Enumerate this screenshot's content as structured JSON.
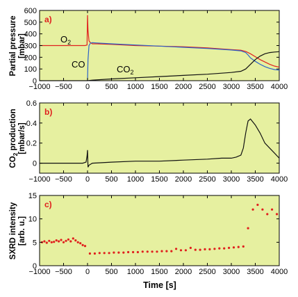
{
  "colors": {
    "background": "#e6f0a0",
    "frame": "#000000",
    "o2": "#e0201e",
    "co": "#2b62c8",
    "co2": "#111111",
    "sxrd": "#e0201e",
    "panel_label": "#e0201e"
  },
  "chart_data": [
    {
      "type": "line",
      "panel_label": "a)",
      "ylabel_line1": "Partial pressure",
      "ylabel_line2": "[mbar]",
      "xlim": [
        -1000,
        4000
      ],
      "ylim": [
        0,
        600
      ],
      "xticks": [
        -1000,
        -500,
        0,
        500,
        1000,
        1500,
        2000,
        2500,
        3000,
        3500,
        4000
      ],
      "yticks": [
        0,
        100,
        200,
        300,
        400,
        500,
        600
      ],
      "xtick_labels": [
        "−1000",
        "−500",
        "0",
        "500",
        "1000",
        "1500",
        "2000",
        "2500",
        "3000",
        "3500",
        "4000"
      ],
      "ytick_labels": [
        "0",
        "100",
        "200",
        "300",
        "400",
        "500",
        "600"
      ],
      "annotations": {
        "o2": "O",
        "o2_sub": "2",
        "co": "CO",
        "co2": "CO",
        "co2_sub": "2"
      },
      "series": [
        {
          "key": "o2",
          "x": [
            -1000,
            -500,
            -50,
            -10,
            0,
            10,
            30,
            60,
            100,
            200,
            500,
            1000,
            1500,
            2000,
            2500,
            3000,
            3200,
            3300,
            3400,
            3500,
            3600,
            3700,
            3800,
            3900,
            4000
          ],
          "y": [
            300,
            300,
            300,
            305,
            560,
            430,
            340,
            325,
            315,
            315,
            310,
            300,
            295,
            290,
            280,
            265,
            260,
            250,
            230,
            205,
            180,
            160,
            140,
            125,
            115
          ]
        },
        {
          "key": "co",
          "x": [
            0,
            10,
            30,
            60,
            100,
            200,
            500,
            1000,
            1500,
            2000,
            2500,
            3000,
            3200,
            3300,
            3350,
            3400,
            3500,
            3600,
            3700,
            3800,
            3900,
            4000
          ],
          "y": [
            5,
            180,
            300,
            320,
            325,
            322,
            315,
            305,
            295,
            285,
            275,
            262,
            255,
            240,
            220,
            195,
            165,
            140,
            120,
            105,
            95,
            90
          ]
        },
        {
          "key": "co2",
          "x": [
            -1000,
            0,
            100,
            500,
            1000,
            1500,
            2000,
            2500,
            3000,
            3200,
            3300,
            3400,
            3500,
            3600,
            3700,
            3800,
            3900,
            4000
          ],
          "y": [
            0,
            0,
            5,
            15,
            25,
            35,
            45,
            55,
            70,
            80,
            100,
            140,
            180,
            210,
            230,
            240,
            245,
            248
          ]
        }
      ]
    },
    {
      "type": "line",
      "panel_label": "b)",
      "ylabel_line1": "CO",
      "ylabel_sub": "2",
      "ylabel_line1_rest": " production",
      "ylabel_line2": "[mbar/s]",
      "xlim": [
        -1000,
        4000
      ],
      "ylim": [
        -0.1,
        0.6
      ],
      "xticks": [
        -1000,
        -500,
        0,
        500,
        1000,
        1500,
        2000,
        2500,
        3000,
        3500,
        4000
      ],
      "yticks": [
        0,
        0.2,
        0.4,
        0.6
      ],
      "xtick_labels": [
        "−1000",
        "−500",
        "0",
        "500",
        "1000",
        "1500",
        "2000",
        "2500",
        "3000",
        "3500",
        "4000"
      ],
      "ytick_labels": [
        "0",
        "0.2",
        "0.4",
        "0.6"
      ],
      "series": [
        {
          "key": "co2_rate",
          "x": [
            -1000,
            -500,
            -100,
            -30,
            -10,
            0,
            10,
            30,
            100,
            500,
            1000,
            1500,
            2000,
            2500,
            2800,
            3000,
            3100,
            3200,
            3250,
            3300,
            3350,
            3400,
            3500,
            3600,
            3700,
            3800,
            3900,
            4000
          ],
          "y": [
            0.0,
            0.0,
            0.0,
            0.01,
            0.07,
            0.13,
            -0.04,
            -0.02,
            0.0,
            0.01,
            0.02,
            0.02,
            0.03,
            0.04,
            0.05,
            0.05,
            0.06,
            0.08,
            0.15,
            0.3,
            0.42,
            0.44,
            0.38,
            0.3,
            0.2,
            0.15,
            0.1,
            0.05
          ]
        }
      ]
    },
    {
      "type": "scatter",
      "panel_label": "c)",
      "ylabel_line1": "SXRD intensity",
      "ylabel_line2": "[arb. u.]",
      "xlabel": "Time [s]",
      "xlim": [
        -1000,
        4000
      ],
      "ylim": [
        0,
        15
      ],
      "xticks": [
        -1000,
        -500,
        0,
        500,
        1000,
        1500,
        2000,
        2500,
        3000,
        3500,
        4000
      ],
      "yticks": [
        0,
        5,
        10,
        15
      ],
      "xtick_labels": [
        "−1000",
        "−500",
        "0",
        "500",
        "1000",
        "1500",
        "2000",
        "2500",
        "3000",
        "3500",
        "4000"
      ],
      "ytick_labels": [
        "0",
        "5",
        "10",
        "15"
      ],
      "series": [
        {
          "key": "sxrd",
          "x": [
            -950,
            -900,
            -850,
            -800,
            -750,
            -700,
            -650,
            -600,
            -550,
            -500,
            -450,
            -400,
            -350,
            -300,
            -250,
            -200,
            -150,
            -100,
            -50,
            50,
            150,
            250,
            350,
            450,
            550,
            650,
            750,
            850,
            950,
            1050,
            1150,
            1250,
            1350,
            1450,
            1550,
            1650,
            1750,
            1850,
            1950,
            2050,
            2150,
            2250,
            2350,
            2450,
            2550,
            2650,
            2750,
            2850,
            2950,
            3050,
            3150,
            3250,
            3350,
            3450,
            3550,
            3650,
            3750,
            3850,
            3950
          ],
          "y": [
            5.0,
            5.2,
            4.9,
            5.3,
            5.0,
            5.1,
            5.4,
            5.2,
            5.5,
            5.0,
            5.3,
            5.6,
            5.2,
            5.8,
            5.4,
            5.0,
            4.8,
            4.4,
            4.2,
            2.6,
            2.6,
            2.7,
            2.7,
            2.7,
            2.8,
            2.8,
            2.8,
            2.9,
            2.9,
            2.9,
            3.0,
            3.0,
            3.0,
            3.0,
            3.1,
            3.1,
            3.1,
            3.6,
            3.3,
            3.3,
            3.8,
            3.4,
            3.4,
            3.5,
            3.5,
            3.6,
            3.7,
            3.7,
            3.8,
            3.9,
            4.0,
            4.1,
            8.0,
            12.0,
            13.0,
            12.0,
            11.0,
            12.0,
            11.0
          ]
        }
      ]
    }
  ]
}
